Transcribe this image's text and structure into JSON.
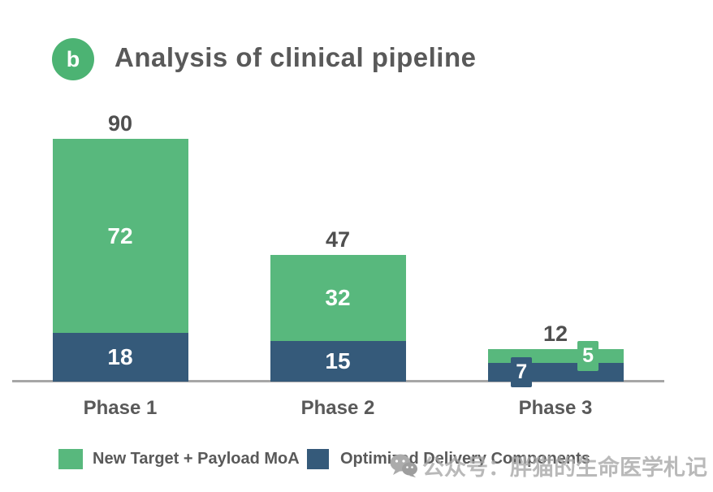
{
  "header": {
    "badge": "b",
    "badge_color": "#4cb373",
    "title": "Analysis of clinical pipeline"
  },
  "chart_data": {
    "type": "bar",
    "stacked": true,
    "title": "Analysis of clinical pipeline",
    "categories": [
      "Phase 1",
      "Phase 2",
      "Phase 3"
    ],
    "series": [
      {
        "name": "Optimized Delivery Components",
        "color": "#355a7a",
        "values": [
          18,
          15,
          7
        ]
      },
      {
        "name": "New Target + Payload MoA",
        "color": "#58b87d",
        "values": [
          72,
          32,
          5
        ]
      }
    ],
    "totals": [
      90,
      47,
      12
    ],
    "xlabel": "",
    "ylabel": "",
    "ylim": [
      0,
      90
    ],
    "grid": false,
    "y_axis_visible": false,
    "legend_position": "bottom",
    "axis_color": "#a6a6a6"
  },
  "legend": {
    "items": [
      {
        "label": "New Target + Payload MoA",
        "color": "#58b87d"
      },
      {
        "label": "Optimized Delivery Components",
        "color": "#355a7a"
      }
    ]
  },
  "watermark": {
    "icon": "wechat-icon",
    "text": "公众号：胖猫的生命医学札记"
  }
}
